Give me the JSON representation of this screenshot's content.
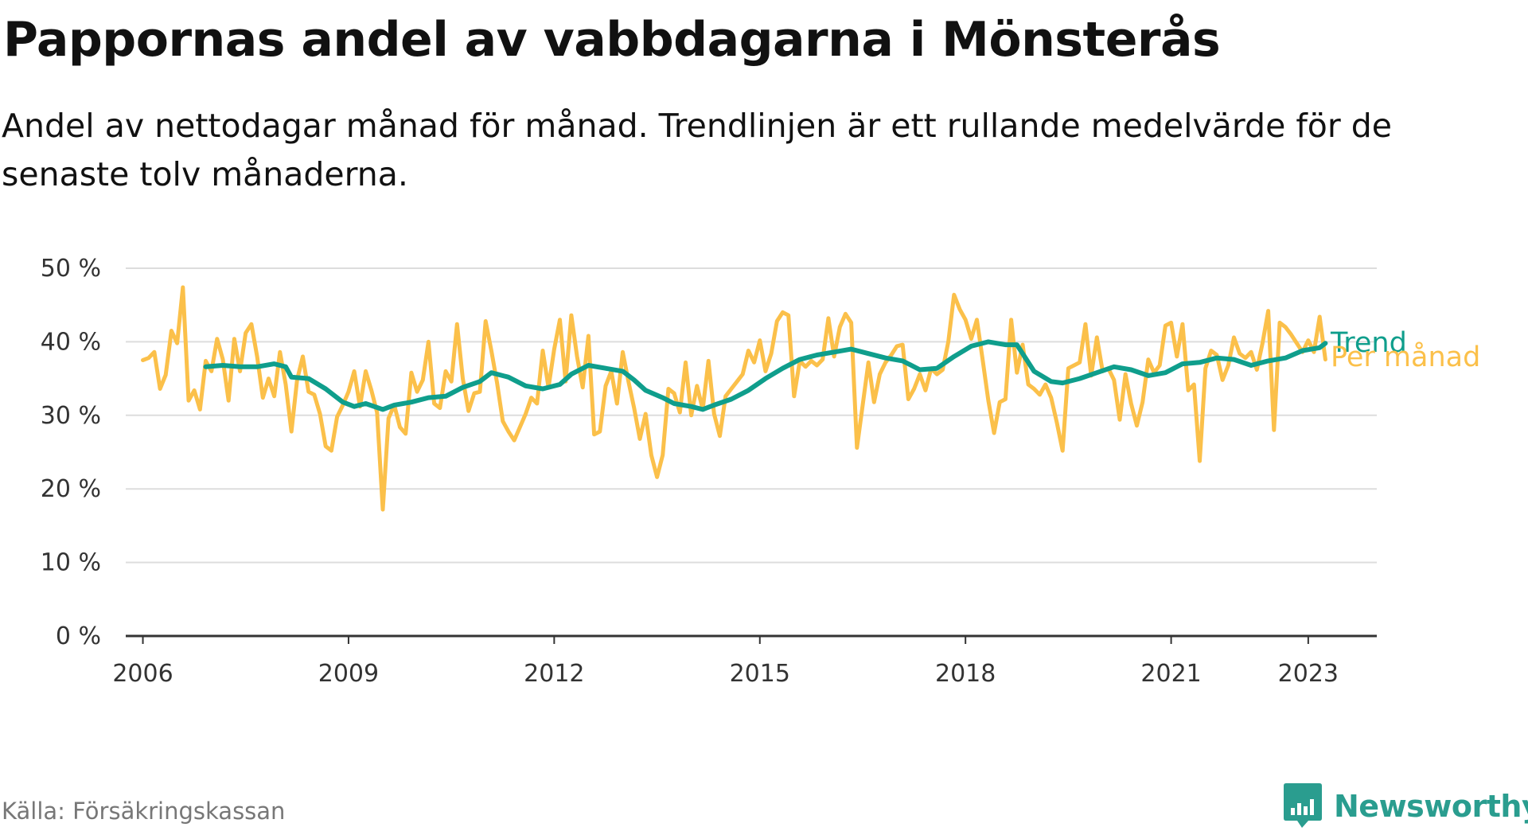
{
  "title": "Pappornas andel av vabbdagarna i Mönsterås",
  "subtitle": "Andel av nettodagar månad för månad. Trendlinjen är ett rullande medelvärde för de senaste tolv månaderna.",
  "source": "Källa: Försäkringskassan",
  "brand": "Newsworthy",
  "colors": {
    "trend": "#0f9e8c",
    "monthly": "#fbc04a",
    "grid": "#dddddd",
    "axis": "#333333",
    "brand": "#2a9d8f"
  },
  "chart_data": {
    "type": "line",
    "x_axis": {
      "type": "date",
      "range": [
        "2005-10",
        "2024-01"
      ],
      "ticks": [
        "2006",
        "2009",
        "2012",
        "2015",
        "2018",
        "2021",
        "2023"
      ]
    },
    "y_axis": {
      "range": [
        0,
        50
      ],
      "ticks": [
        "0 %",
        "10 %",
        "20 %",
        "30 %",
        "40 %",
        "50 %"
      ],
      "unit": "%"
    },
    "grid": true,
    "series": [
      {
        "name": "Per månad",
        "color": "#fbc04a",
        "points": [
          [
            "2006-01",
            37.5
          ],
          [
            "2006-02",
            37.8
          ],
          [
            "2006-03",
            38.6
          ],
          [
            "2006-04",
            33.6
          ],
          [
            "2006-05",
            35.5
          ],
          [
            "2006-06",
            41.5
          ],
          [
            "2006-07",
            39.8
          ],
          [
            "2006-08",
            47.4
          ],
          [
            "2006-09",
            32.0
          ],
          [
            "2006-10",
            33.4
          ],
          [
            "2006-11",
            30.8
          ],
          [
            "2006-12",
            37.4
          ],
          [
            "2007-01",
            36.0
          ],
          [
            "2007-02",
            40.4
          ],
          [
            "2007-03",
            37.6
          ],
          [
            "2007-04",
            32.0
          ],
          [
            "2007-05",
            40.4
          ],
          [
            "2007-06",
            36.0
          ],
          [
            "2007-07",
            41.2
          ],
          [
            "2007-08",
            42.4
          ],
          [
            "2007-09",
            38.0
          ],
          [
            "2007-10",
            32.4
          ],
          [
            "2007-11",
            35.0
          ],
          [
            "2007-12",
            32.6
          ],
          [
            "2008-01",
            38.6
          ],
          [
            "2008-02",
            34.2
          ],
          [
            "2008-03",
            27.8
          ],
          [
            "2008-04",
            34.8
          ],
          [
            "2008-05",
            38.0
          ],
          [
            "2008-06",
            33.2
          ],
          [
            "2008-07",
            32.8
          ],
          [
            "2008-08",
            30.2
          ],
          [
            "2008-09",
            25.8
          ],
          [
            "2008-10",
            25.2
          ],
          [
            "2008-11",
            29.8
          ],
          [
            "2008-12",
            31.4
          ],
          [
            "2009-01",
            33.2
          ],
          [
            "2009-02",
            36.0
          ],
          [
            "2009-03",
            31.2
          ],
          [
            "2009-04",
            36.0
          ],
          [
            "2009-05",
            33.4
          ],
          [
            "2009-06",
            30.4
          ],
          [
            "2009-07",
            17.2
          ],
          [
            "2009-08",
            29.6
          ],
          [
            "2009-09",
            31.4
          ],
          [
            "2009-10",
            28.4
          ],
          [
            "2009-11",
            27.5
          ],
          [
            "2009-12",
            35.8
          ],
          [
            "2010-01",
            33.2
          ],
          [
            "2010-02",
            34.8
          ],
          [
            "2010-03",
            40.0
          ],
          [
            "2010-04",
            31.6
          ],
          [
            "2010-05",
            31.0
          ],
          [
            "2010-06",
            36.0
          ],
          [
            "2010-07",
            34.6
          ],
          [
            "2010-08",
            42.4
          ],
          [
            "2010-09",
            35.0
          ],
          [
            "2010-10",
            30.6
          ],
          [
            "2010-11",
            33.0
          ],
          [
            "2010-12",
            33.2
          ],
          [
            "2011-01",
            42.8
          ],
          [
            "2011-02",
            38.8
          ],
          [
            "2011-03",
            34.4
          ],
          [
            "2011-04",
            29.2
          ],
          [
            "2011-05",
            27.8
          ],
          [
            "2011-06",
            26.6
          ],
          [
            "2011-07",
            28.4
          ],
          [
            "2011-08",
            30.2
          ],
          [
            "2011-09",
            32.4
          ],
          [
            "2011-10",
            31.6
          ],
          [
            "2011-11",
            38.8
          ],
          [
            "2011-12",
            33.8
          ],
          [
            "2012-01",
            39.0
          ],
          [
            "2012-02",
            43.0
          ],
          [
            "2012-03",
            34.6
          ],
          [
            "2012-04",
            43.6
          ],
          [
            "2012-05",
            38.0
          ],
          [
            "2012-06",
            33.8
          ],
          [
            "2012-07",
            40.8
          ],
          [
            "2012-08",
            27.4
          ],
          [
            "2012-09",
            27.8
          ],
          [
            "2012-10",
            34.0
          ],
          [
            "2012-11",
            36.0
          ],
          [
            "2012-12",
            31.6
          ],
          [
            "2013-01",
            38.6
          ],
          [
            "2013-02",
            34.6
          ],
          [
            "2013-03",
            31.0
          ],
          [
            "2013-04",
            26.8
          ],
          [
            "2013-05",
            30.2
          ],
          [
            "2013-06",
            24.6
          ],
          [
            "2013-07",
            21.6
          ],
          [
            "2013-08",
            24.6
          ],
          [
            "2013-09",
            33.6
          ],
          [
            "2013-10",
            33.0
          ],
          [
            "2013-11",
            30.4
          ],
          [
            "2013-12",
            37.2
          ],
          [
            "2014-01",
            30.0
          ],
          [
            "2014-02",
            34.0
          ],
          [
            "2014-03",
            30.8
          ],
          [
            "2014-04",
            37.4
          ],
          [
            "2014-05",
            30.2
          ],
          [
            "2014-06",
            27.2
          ],
          [
            "2014-07",
            32.6
          ],
          [
            "2014-08",
            33.6
          ],
          [
            "2014-09",
            34.6
          ],
          [
            "2014-10",
            35.6
          ],
          [
            "2014-11",
            38.8
          ],
          [
            "2014-12",
            37.2
          ],
          [
            "2015-01",
            40.2
          ],
          [
            "2015-02",
            36.0
          ],
          [
            "2015-03",
            38.4
          ],
          [
            "2015-04",
            42.8
          ],
          [
            "2015-05",
            44.0
          ],
          [
            "2015-06",
            43.6
          ],
          [
            "2015-07",
            32.6
          ],
          [
            "2015-08",
            37.4
          ],
          [
            "2015-09",
            36.6
          ],
          [
            "2015-10",
            37.4
          ],
          [
            "2015-11",
            36.8
          ],
          [
            "2015-12",
            37.6
          ],
          [
            "2016-01",
            43.2
          ],
          [
            "2016-02",
            38.0
          ],
          [
            "2016-03",
            42.0
          ],
          [
            "2016-04",
            43.8
          ],
          [
            "2016-05",
            42.6
          ],
          [
            "2016-06",
            25.6
          ],
          [
            "2016-07",
            31.4
          ],
          [
            "2016-08",
            37.2
          ],
          [
            "2016-09",
            31.8
          ],
          [
            "2016-10",
            35.6
          ],
          [
            "2016-11",
            37.2
          ],
          [
            "2016-12",
            38.2
          ],
          [
            "2017-01",
            39.4
          ],
          [
            "2017-02",
            39.6
          ],
          [
            "2017-03",
            32.2
          ],
          [
            "2017-04",
            33.6
          ],
          [
            "2017-05",
            35.6
          ],
          [
            "2017-06",
            33.4
          ],
          [
            "2017-07",
            36.4
          ],
          [
            "2017-08",
            35.6
          ],
          [
            "2017-09",
            36.2
          ],
          [
            "2017-10",
            40.0
          ],
          [
            "2017-11",
            46.4
          ],
          [
            "2017-12",
            44.4
          ],
          [
            "2018-01",
            43.0
          ],
          [
            "2018-02",
            40.4
          ],
          [
            "2018-03",
            43.0
          ],
          [
            "2018-04",
            37.6
          ],
          [
            "2018-05",
            32.0
          ],
          [
            "2018-06",
            27.6
          ],
          [
            "2018-07",
            31.8
          ],
          [
            "2018-08",
            32.2
          ],
          [
            "2018-09",
            43.0
          ],
          [
            "2018-10",
            35.8
          ],
          [
            "2018-11",
            39.6
          ],
          [
            "2018-12",
            34.2
          ],
          [
            "2019-01",
            33.6
          ],
          [
            "2019-02",
            32.8
          ],
          [
            "2019-03",
            34.2
          ],
          [
            "2019-04",
            32.4
          ],
          [
            "2019-05",
            29.0
          ],
          [
            "2019-06",
            25.2
          ],
          [
            "2019-07",
            36.4
          ],
          [
            "2019-08",
            36.8
          ],
          [
            "2019-09",
            37.2
          ],
          [
            "2019-10",
            42.4
          ],
          [
            "2019-11",
            35.4
          ],
          [
            "2019-12",
            40.6
          ],
          [
            "2020-01",
            36.0
          ],
          [
            "2020-02",
            36.4
          ],
          [
            "2020-03",
            34.8
          ],
          [
            "2020-04",
            29.4
          ],
          [
            "2020-05",
            35.6
          ],
          [
            "2020-06",
            31.6
          ],
          [
            "2020-07",
            28.6
          ],
          [
            "2020-08",
            31.8
          ],
          [
            "2020-09",
            37.6
          ],
          [
            "2020-10",
            35.8
          ],
          [
            "2020-11",
            36.8
          ],
          [
            "2020-12",
            42.2
          ],
          [
            "2021-01",
            42.6
          ],
          [
            "2021-02",
            38.0
          ],
          [
            "2021-03",
            42.4
          ],
          [
            "2021-04",
            33.4
          ],
          [
            "2021-05",
            34.2
          ],
          [
            "2021-06",
            23.8
          ],
          [
            "2021-07",
            36.4
          ],
          [
            "2021-08",
            38.8
          ],
          [
            "2021-09",
            38.2
          ],
          [
            "2021-10",
            34.8
          ],
          [
            "2021-11",
            36.8
          ],
          [
            "2021-12",
            40.6
          ],
          [
            "2022-01",
            38.4
          ],
          [
            "2022-02",
            37.8
          ],
          [
            "2022-03",
            38.6
          ],
          [
            "2022-04",
            36.2
          ],
          [
            "2022-05",
            39.8
          ],
          [
            "2022-06",
            44.2
          ],
          [
            "2022-07",
            28.0
          ],
          [
            "2022-08",
            42.6
          ],
          [
            "2022-09",
            42.0
          ],
          [
            "2022-10",
            41.0
          ],
          [
            "2022-11",
            39.8
          ],
          [
            "2022-12",
            38.6
          ],
          [
            "2023-01",
            40.2
          ],
          [
            "2023-02",
            38.6
          ],
          [
            "2023-03",
            43.4
          ],
          [
            "2023-04",
            37.6
          ]
        ]
      },
      {
        "name": "Trend",
        "color": "#0f9e8c",
        "points": [
          [
            "2006-12",
            36.6
          ],
          [
            "2007-03",
            36.8
          ],
          [
            "2007-06",
            36.6
          ],
          [
            "2007-09",
            36.6
          ],
          [
            "2007-12",
            37.0
          ],
          [
            "2008-02",
            36.6
          ],
          [
            "2008-03",
            35.2
          ],
          [
            "2008-06",
            35.0
          ],
          [
            "2008-09",
            33.6
          ],
          [
            "2008-12",
            31.8
          ],
          [
            "2009-02",
            31.2
          ],
          [
            "2009-04",
            31.6
          ],
          [
            "2009-07",
            30.8
          ],
          [
            "2009-09",
            31.4
          ],
          [
            "2009-12",
            31.8
          ],
          [
            "2010-03",
            32.4
          ],
          [
            "2010-06",
            32.6
          ],
          [
            "2010-09",
            33.8
          ],
          [
            "2010-12",
            34.6
          ],
          [
            "2011-02",
            35.8
          ],
          [
            "2011-05",
            35.2
          ],
          [
            "2011-08",
            34.0
          ],
          [
            "2011-11",
            33.6
          ],
          [
            "2012-02",
            34.2
          ],
          [
            "2012-04",
            35.6
          ],
          [
            "2012-07",
            36.8
          ],
          [
            "2012-10",
            36.4
          ],
          [
            "2013-01",
            36.0
          ],
          [
            "2013-03",
            34.8
          ],
          [
            "2013-05",
            33.4
          ],
          [
            "2013-08",
            32.4
          ],
          [
            "2013-10",
            31.6
          ],
          [
            "2014-01",
            31.2
          ],
          [
            "2014-03",
            30.8
          ],
          [
            "2014-05",
            31.4
          ],
          [
            "2014-08",
            32.2
          ],
          [
            "2014-11",
            33.4
          ],
          [
            "2015-02",
            35.0
          ],
          [
            "2015-05",
            36.4
          ],
          [
            "2015-08",
            37.6
          ],
          [
            "2015-11",
            38.2
          ],
          [
            "2016-02",
            38.6
          ],
          [
            "2016-05",
            39.0
          ],
          [
            "2016-08",
            38.4
          ],
          [
            "2016-11",
            37.8
          ],
          [
            "2017-02",
            37.4
          ],
          [
            "2017-05",
            36.2
          ],
          [
            "2017-08",
            36.4
          ],
          [
            "2017-11",
            38.0
          ],
          [
            "2018-02",
            39.4
          ],
          [
            "2018-05",
            40.0
          ],
          [
            "2018-08",
            39.6
          ],
          [
            "2018-10",
            39.6
          ],
          [
            "2019-01",
            36.0
          ],
          [
            "2019-04",
            34.6
          ],
          [
            "2019-06",
            34.4
          ],
          [
            "2019-09",
            35.0
          ],
          [
            "2019-12",
            35.8
          ],
          [
            "2020-03",
            36.6
          ],
          [
            "2020-06",
            36.2
          ],
          [
            "2020-09",
            35.4
          ],
          [
            "2020-12",
            35.8
          ],
          [
            "2021-03",
            37.0
          ],
          [
            "2021-06",
            37.2
          ],
          [
            "2021-09",
            37.8
          ],
          [
            "2021-12",
            37.6
          ],
          [
            "2022-03",
            36.8
          ],
          [
            "2022-06",
            37.4
          ],
          [
            "2022-09",
            37.8
          ],
          [
            "2022-12",
            38.8
          ],
          [
            "2023-03",
            39.2
          ],
          [
            "2023-04",
            39.8
          ]
        ]
      }
    ]
  }
}
